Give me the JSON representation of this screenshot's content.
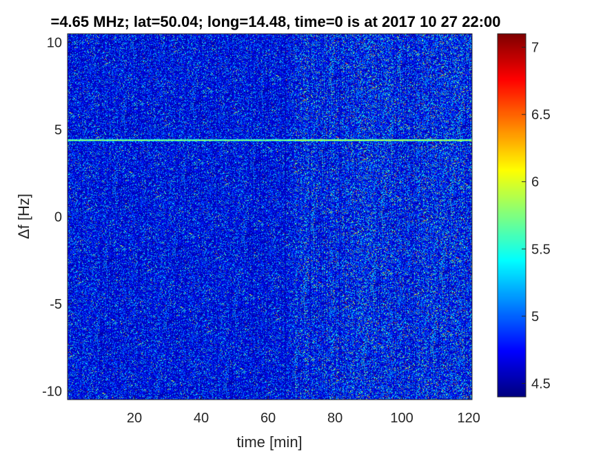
{
  "chart_data": {
    "type": "heatmap",
    "title": "=4.65 MHz;  lat=50.04; long=14.48, time=0 is at 2017 10 27 22:00",
    "xlabel": "time [min]",
    "ylabel": "Δf [Hz]",
    "xlim": [
      0,
      121
    ],
    "ylim": [
      -10.5,
      10.5
    ],
    "x_ticks": [
      20,
      40,
      60,
      80,
      100,
      120
    ],
    "y_ticks": [
      10,
      5,
      0,
      -5,
      -10
    ],
    "colorbar": {
      "colormap": "jet",
      "clim": [
        4.4,
        7.1
      ],
      "ticks": [
        "7",
        "6.5",
        "6",
        "5.5",
        "5",
        "4.5"
      ]
    },
    "features": [
      {
        "kind": "horizontal_line",
        "frequency_offset_hz": 4.4,
        "time_range_min": [
          0,
          121
        ]
      }
    ],
    "background_level": 4.8,
    "noisier_after_min": 68
  }
}
